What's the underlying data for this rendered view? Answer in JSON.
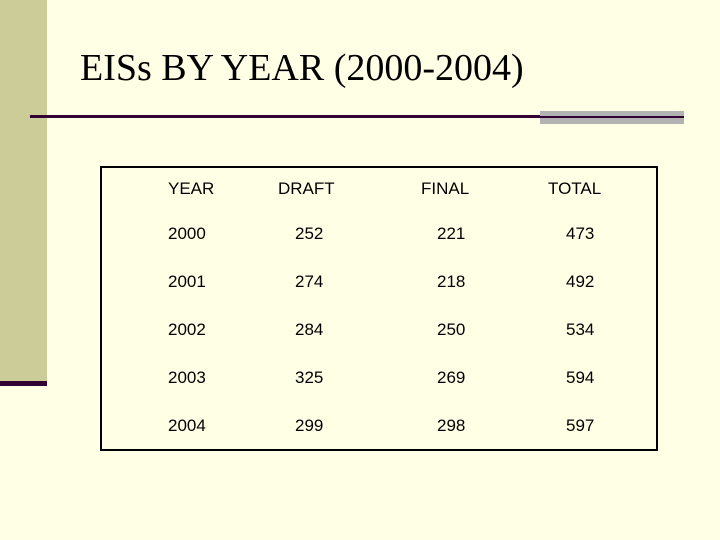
{
  "slide": {
    "title": "EISs BY YEAR (2000-2004)"
  },
  "table": {
    "headers": [
      "YEAR",
      "DRAFT",
      "FINAL",
      "TOTAL"
    ],
    "rows": [
      [
        "2000",
        "252",
        "221",
        "473"
      ],
      [
        "2001",
        "274",
        "218",
        "492"
      ],
      [
        "2002",
        "284",
        "250",
        "534"
      ],
      [
        "2003",
        "325",
        "269",
        "594"
      ],
      [
        "2004",
        "299",
        "298",
        "597"
      ]
    ]
  },
  "colors": {
    "background": "#ffffe6",
    "side_bar": "#cccc99",
    "accent_dark": "#330033",
    "accent_grey": "#b2b2b2"
  }
}
